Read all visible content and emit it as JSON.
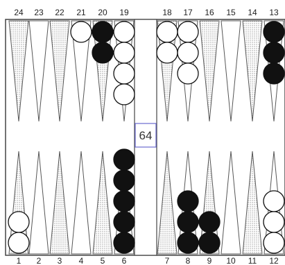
{
  "board": {
    "top_point_labels": [
      "24",
      "23",
      "22",
      "21",
      "20",
      "19",
      "18",
      "17",
      "16",
      "15",
      "14",
      "13"
    ],
    "bottom_point_labels": [
      "1",
      "2",
      "3",
      "4",
      "5",
      "6",
      "7",
      "8",
      "9",
      "10",
      "11",
      "12"
    ],
    "doubling_cube": "64",
    "positions": [
      {
        "point": 24,
        "color": "white",
        "count": 0
      },
      {
        "point": 23,
        "color": "white",
        "count": 0
      },
      {
        "point": 22,
        "color": "white",
        "count": 0
      },
      {
        "point": 21,
        "color": "white",
        "count": 1
      },
      {
        "point": 20,
        "color": "black",
        "count": 2
      },
      {
        "point": 19,
        "color": "white",
        "count": 4
      },
      {
        "point": 18,
        "color": "white",
        "count": 2
      },
      {
        "point": 17,
        "color": "white",
        "count": 3
      },
      {
        "point": 16,
        "color": "white",
        "count": 0
      },
      {
        "point": 15,
        "color": "white",
        "count": 0
      },
      {
        "point": 14,
        "color": "white",
        "count": 0
      },
      {
        "point": 13,
        "color": "black",
        "count": 3
      },
      {
        "point": 1,
        "color": "white",
        "count": 2
      },
      {
        "point": 2,
        "color": "white",
        "count": 0
      },
      {
        "point": 3,
        "color": "white",
        "count": 0
      },
      {
        "point": 4,
        "color": "white",
        "count": 0
      },
      {
        "point": 5,
        "color": "white",
        "count": 0
      },
      {
        "point": 6,
        "color": "black",
        "count": 5
      },
      {
        "point": 7,
        "color": "white",
        "count": 0
      },
      {
        "point": 8,
        "color": "black",
        "count": 3
      },
      {
        "point": 9,
        "color": "black",
        "count": 2
      },
      {
        "point": 10,
        "color": "white",
        "count": 0
      },
      {
        "point": 11,
        "color": "white",
        "count": 0
      },
      {
        "point": 12,
        "color": "white",
        "count": 3
      }
    ],
    "colors": {
      "border": "#444444",
      "triangle_shaded": "#cfcfcf",
      "checker_black": "#111111",
      "checker_white": "#ffffff",
      "cube_border": "#6a6ad0"
    }
  }
}
